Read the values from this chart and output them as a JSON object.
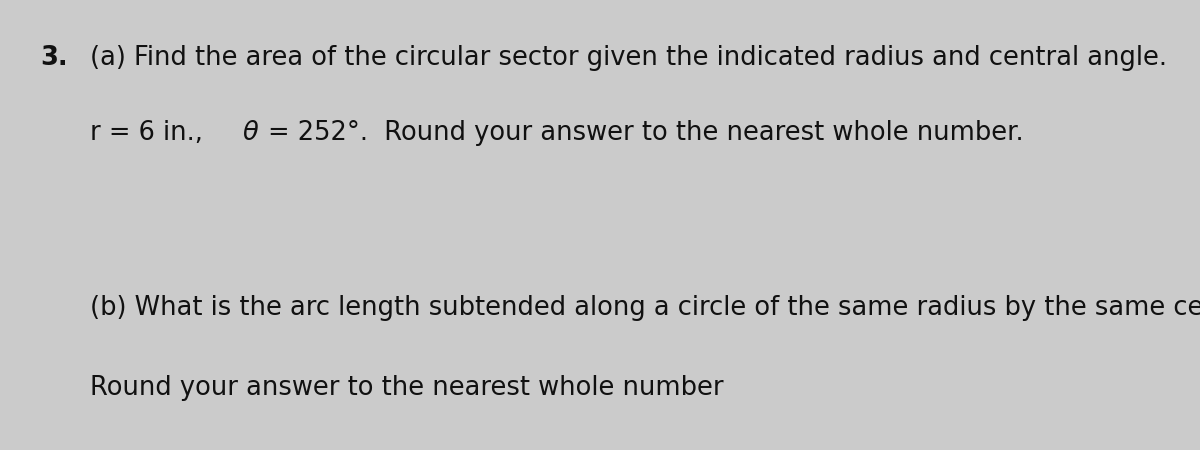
{
  "background_color": "#cbcbcb",
  "number": "3.",
  "line1": "(a) Find the area of the circular sector given the indicated radius and central angle.",
  "line2a": "r = 6 in.,  ",
  "line2b": "θ = 252°.",
  "line2c": "  Round your answer to the nearest whole number.",
  "line3": "(b) What is the arc length subtended along a circle of the same radius by the same central angle?",
  "line4": "Round your answer to the nearest whole number",
  "font_size": 18.5,
  "text_color": "#111111"
}
